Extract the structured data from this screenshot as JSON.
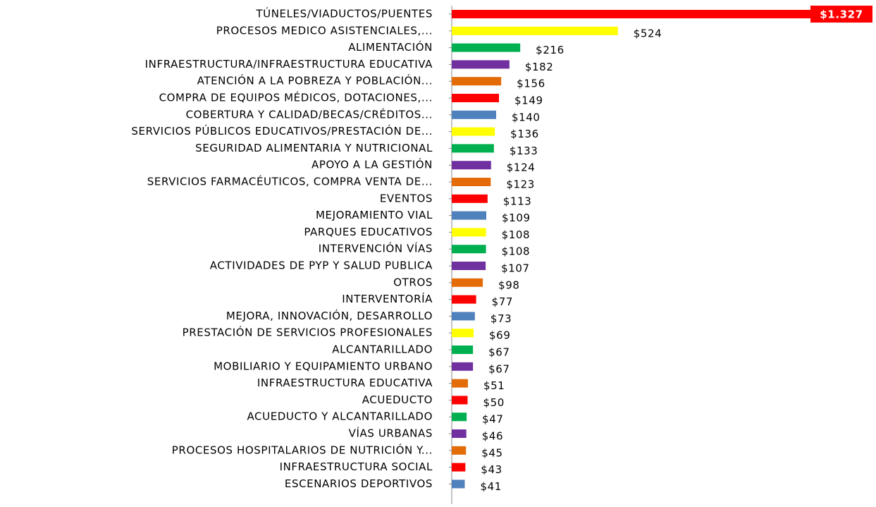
{
  "chart_data": {
    "type": "bar",
    "orientation": "horizontal",
    "categories": [
      "TÚNELES/VIADUCTOS/PUENTES",
      "PROCESOS MEDICO ASISTENCIALES,...",
      "ALIMENTACIÓN",
      "INFRAESTRUCTURA/INFRAESTRUCTURA EDUCATIVA",
      "ATENCIÓN A LA POBREZA Y POBLACIÓN...",
      "COMPRA DE EQUIPOS MÉDICOS, DOTACIONES,...",
      "COBERTURA Y CALIDAD/BECAS/CRÉDITOS...",
      "SERVICIOS PÚBLICOS EDUCATIVOS/PRESTACIÓN DE...",
      "SEGURIDAD ALIMENTARIA Y NUTRICIONAL",
      "APOYO A LA GESTIÓN",
      "SERVICIOS FARMACÉUTICOS, COMPRA VENTA DE...",
      "EVENTOS",
      "MEJORAMIENTO VIAL",
      "PARQUES EDUCATIVOS",
      "INTERVENCIÓN VÍAS",
      "ACTIVIDADES DE PYP Y SALUD PUBLICA",
      "OTROS",
      "INTERVENTORÍA",
      "MEJORA, INNOVACIÓN, DESARROLLO",
      "PRESTACIÓN DE SERVICIOS PROFESIONALES",
      "ALCANTARILLADO",
      "MOBILIARIO Y EQUIPAMIENTO URBANO",
      "INFRAESTRUCTURA EDUCATIVA",
      "ACUEDUCTO",
      "ACUEDUCTO Y ALCANTARILLADO",
      "VÍAS URBANAS",
      "PROCESOS HOSPITALARIOS DE NUTRICIÓN Y...",
      "INFRAESTRUCTURA SOCIAL",
      "ESCENARIOS DEPORTIVOS"
    ],
    "values": [
      1327,
      524,
      216,
      182,
      156,
      149,
      140,
      136,
      133,
      124,
      123,
      113,
      109,
      108,
      108,
      107,
      98,
      77,
      73,
      69,
      67,
      67,
      51,
      50,
      47,
      46,
      45,
      43,
      41
    ],
    "value_labels": [
      "$1.327",
      "$524",
      "$216",
      "$182",
      "$156",
      "$149",
      "$140",
      "$136",
      "$133",
      "$124",
      "$123",
      "$113",
      "$109",
      "$108",
      "$108",
      "$107",
      "$98",
      "$77",
      "$73",
      "$69",
      "$67",
      "$67",
      "$51",
      "$50",
      "$47",
      "$46",
      "$45",
      "$43",
      "$41"
    ],
    "colors": [
      "#ff0000",
      "#ffff00",
      "#00b050",
      "#7030a0",
      "#e36c09",
      "#ff0000",
      "#4f81bd",
      "#ffff00",
      "#00b050",
      "#7030a0",
      "#e36c09",
      "#ff0000",
      "#4f81bd",
      "#ffff00",
      "#00b050",
      "#7030a0",
      "#e36c09",
      "#ff0000",
      "#4f81bd",
      "#ffff00",
      "#00b050",
      "#7030a0",
      "#e36c09",
      "#ff0000",
      "#00b050",
      "#7030a0",
      "#e36c09",
      "#ff0000",
      "#4f81bd"
    ],
    "xlim": [
      0,
      1327
    ]
  }
}
